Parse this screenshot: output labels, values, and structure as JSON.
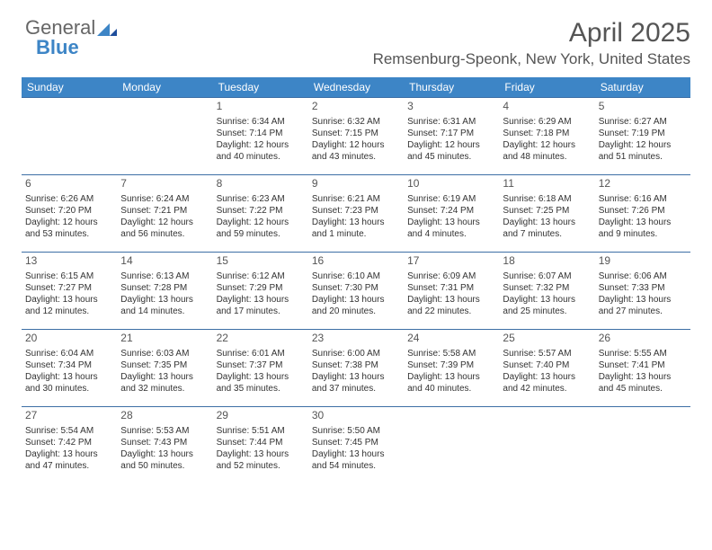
{
  "logo": {
    "text1": "General",
    "text2": "Blue"
  },
  "title": "April 2025",
  "location": "Remsenburg-Speonk, New York, United States",
  "colors": {
    "header_bg": "#3d85c6",
    "header_text": "#ffffff",
    "border": "#3d6fa5",
    "text": "#333333",
    "title": "#555555"
  },
  "weekdays": [
    "Sunday",
    "Monday",
    "Tuesday",
    "Wednesday",
    "Thursday",
    "Friday",
    "Saturday"
  ],
  "weeks": [
    [
      null,
      null,
      {
        "n": "1",
        "sr": "Sunrise: 6:34 AM",
        "ss": "Sunset: 7:14 PM",
        "dl": "Daylight: 12 hours and 40 minutes."
      },
      {
        "n": "2",
        "sr": "Sunrise: 6:32 AM",
        "ss": "Sunset: 7:15 PM",
        "dl": "Daylight: 12 hours and 43 minutes."
      },
      {
        "n": "3",
        "sr": "Sunrise: 6:31 AM",
        "ss": "Sunset: 7:17 PM",
        "dl": "Daylight: 12 hours and 45 minutes."
      },
      {
        "n": "4",
        "sr": "Sunrise: 6:29 AM",
        "ss": "Sunset: 7:18 PM",
        "dl": "Daylight: 12 hours and 48 minutes."
      },
      {
        "n": "5",
        "sr": "Sunrise: 6:27 AM",
        "ss": "Sunset: 7:19 PM",
        "dl": "Daylight: 12 hours and 51 minutes."
      }
    ],
    [
      {
        "n": "6",
        "sr": "Sunrise: 6:26 AM",
        "ss": "Sunset: 7:20 PM",
        "dl": "Daylight: 12 hours and 53 minutes."
      },
      {
        "n": "7",
        "sr": "Sunrise: 6:24 AM",
        "ss": "Sunset: 7:21 PM",
        "dl": "Daylight: 12 hours and 56 minutes."
      },
      {
        "n": "8",
        "sr": "Sunrise: 6:23 AM",
        "ss": "Sunset: 7:22 PM",
        "dl": "Daylight: 12 hours and 59 minutes."
      },
      {
        "n": "9",
        "sr": "Sunrise: 6:21 AM",
        "ss": "Sunset: 7:23 PM",
        "dl": "Daylight: 13 hours and 1 minute."
      },
      {
        "n": "10",
        "sr": "Sunrise: 6:19 AM",
        "ss": "Sunset: 7:24 PM",
        "dl": "Daylight: 13 hours and 4 minutes."
      },
      {
        "n": "11",
        "sr": "Sunrise: 6:18 AM",
        "ss": "Sunset: 7:25 PM",
        "dl": "Daylight: 13 hours and 7 minutes."
      },
      {
        "n": "12",
        "sr": "Sunrise: 6:16 AM",
        "ss": "Sunset: 7:26 PM",
        "dl": "Daylight: 13 hours and 9 minutes."
      }
    ],
    [
      {
        "n": "13",
        "sr": "Sunrise: 6:15 AM",
        "ss": "Sunset: 7:27 PM",
        "dl": "Daylight: 13 hours and 12 minutes."
      },
      {
        "n": "14",
        "sr": "Sunrise: 6:13 AM",
        "ss": "Sunset: 7:28 PM",
        "dl": "Daylight: 13 hours and 14 minutes."
      },
      {
        "n": "15",
        "sr": "Sunrise: 6:12 AM",
        "ss": "Sunset: 7:29 PM",
        "dl": "Daylight: 13 hours and 17 minutes."
      },
      {
        "n": "16",
        "sr": "Sunrise: 6:10 AM",
        "ss": "Sunset: 7:30 PM",
        "dl": "Daylight: 13 hours and 20 minutes."
      },
      {
        "n": "17",
        "sr": "Sunrise: 6:09 AM",
        "ss": "Sunset: 7:31 PM",
        "dl": "Daylight: 13 hours and 22 minutes."
      },
      {
        "n": "18",
        "sr": "Sunrise: 6:07 AM",
        "ss": "Sunset: 7:32 PM",
        "dl": "Daylight: 13 hours and 25 minutes."
      },
      {
        "n": "19",
        "sr": "Sunrise: 6:06 AM",
        "ss": "Sunset: 7:33 PM",
        "dl": "Daylight: 13 hours and 27 minutes."
      }
    ],
    [
      {
        "n": "20",
        "sr": "Sunrise: 6:04 AM",
        "ss": "Sunset: 7:34 PM",
        "dl": "Daylight: 13 hours and 30 minutes."
      },
      {
        "n": "21",
        "sr": "Sunrise: 6:03 AM",
        "ss": "Sunset: 7:35 PM",
        "dl": "Daylight: 13 hours and 32 minutes."
      },
      {
        "n": "22",
        "sr": "Sunrise: 6:01 AM",
        "ss": "Sunset: 7:37 PM",
        "dl": "Daylight: 13 hours and 35 minutes."
      },
      {
        "n": "23",
        "sr": "Sunrise: 6:00 AM",
        "ss": "Sunset: 7:38 PM",
        "dl": "Daylight: 13 hours and 37 minutes."
      },
      {
        "n": "24",
        "sr": "Sunrise: 5:58 AM",
        "ss": "Sunset: 7:39 PM",
        "dl": "Daylight: 13 hours and 40 minutes."
      },
      {
        "n": "25",
        "sr": "Sunrise: 5:57 AM",
        "ss": "Sunset: 7:40 PM",
        "dl": "Daylight: 13 hours and 42 minutes."
      },
      {
        "n": "26",
        "sr": "Sunrise: 5:55 AM",
        "ss": "Sunset: 7:41 PM",
        "dl": "Daylight: 13 hours and 45 minutes."
      }
    ],
    [
      {
        "n": "27",
        "sr": "Sunrise: 5:54 AM",
        "ss": "Sunset: 7:42 PM",
        "dl": "Daylight: 13 hours and 47 minutes."
      },
      {
        "n": "28",
        "sr": "Sunrise: 5:53 AM",
        "ss": "Sunset: 7:43 PM",
        "dl": "Daylight: 13 hours and 50 minutes."
      },
      {
        "n": "29",
        "sr": "Sunrise: 5:51 AM",
        "ss": "Sunset: 7:44 PM",
        "dl": "Daylight: 13 hours and 52 minutes."
      },
      {
        "n": "30",
        "sr": "Sunrise: 5:50 AM",
        "ss": "Sunset: 7:45 PM",
        "dl": "Daylight: 13 hours and 54 minutes."
      },
      null,
      null,
      null
    ]
  ]
}
